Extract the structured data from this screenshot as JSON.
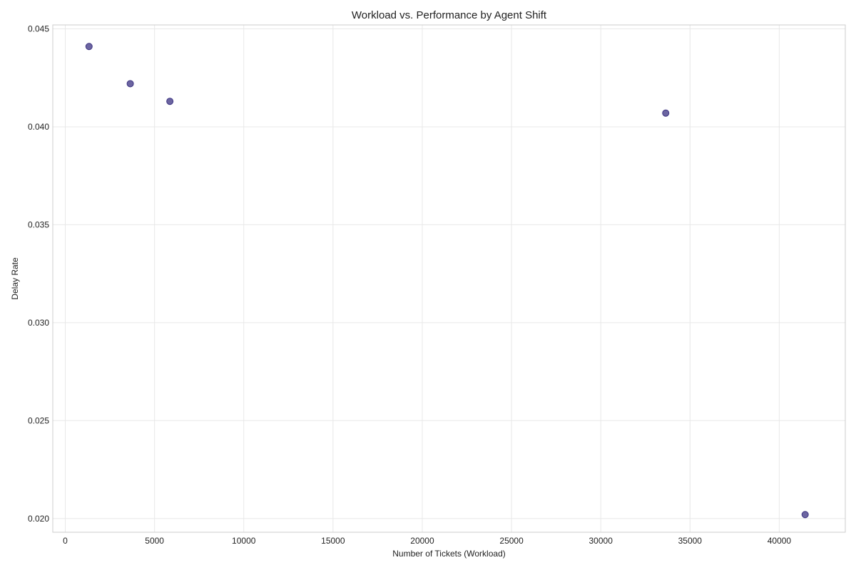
{
  "chart_data": {
    "type": "scatter",
    "title": "Workload vs. Performance by Agent Shift",
    "xlabel": "Number of Tickets (Workload)",
    "ylabel": "Delay Rate",
    "xlim": [
      -700,
      43700
    ],
    "ylim": [
      0.0193,
      0.0452
    ],
    "xticks": [
      0,
      5000,
      10000,
      15000,
      20000,
      25000,
      30000,
      35000,
      40000
    ],
    "yticks": [
      0.02,
      0.025,
      0.03,
      0.035,
      0.04,
      0.045
    ],
    "ytick_labels": [
      "0.020",
      "0.025",
      "0.030",
      "0.035",
      "0.040",
      "0.045"
    ],
    "grid": true,
    "point_color": "#3b3281",
    "series": [
      {
        "x": [
          1330,
          3640,
          5860,
          33640,
          41450
        ],
        "y": [
          0.0441,
          0.0422,
          0.0413,
          0.0407,
          0.0202
        ]
      }
    ]
  }
}
